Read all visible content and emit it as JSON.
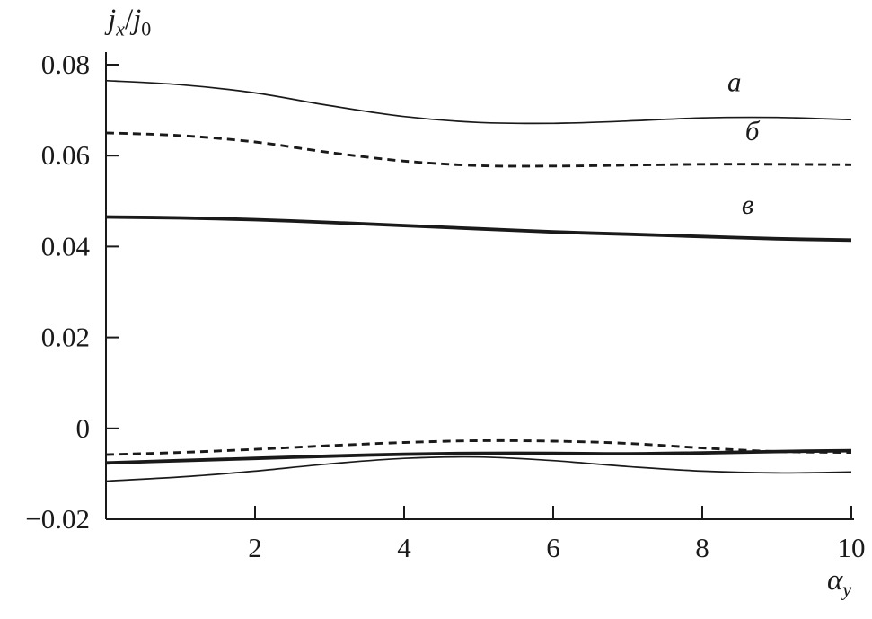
{
  "figure": {
    "y_axis_title": {
      "var1": "j",
      "sub1": "x",
      "sep": "/",
      "var2": "j",
      "sub2": "0"
    },
    "x_axis_title": {
      "var": "α",
      "sub": "y"
    }
  },
  "chart_data": {
    "type": "line",
    "title": "",
    "xlabel": "α_y",
    "ylabel": "j_x/j_0",
    "xlim": [
      0,
      10
    ],
    "ylim": [
      -0.02,
      0.08
    ],
    "grid": false,
    "legend": "inline-annotations",
    "line_color": "#1a1a1a",
    "xtick_values": [
      2,
      4,
      6,
      8,
      10
    ],
    "xtick_labels": [
      "2",
      "4",
      "6",
      "8",
      "10"
    ],
    "ytick_values": [
      -0.02,
      0,
      0.02,
      0.04,
      0.06,
      0.08
    ],
    "ytick_labels": [
      "−0.02",
      "0",
      "0.02",
      "0.04",
      "0.06",
      "0.08"
    ],
    "x": [
      0,
      1,
      2,
      3,
      4,
      5,
      6,
      7,
      8,
      9,
      10
    ],
    "series": [
      {
        "name": "a-upper",
        "line_style": "thin-solid",
        "y": [
          0.0765,
          0.0756,
          0.0738,
          0.071,
          0.0686,
          0.0673,
          0.0671,
          0.0676,
          0.0683,
          0.0684,
          0.0679
        ]
      },
      {
        "name": "b-upper",
        "line_style": "dashed",
        "y": [
          0.065,
          0.0644,
          0.063,
          0.0607,
          0.0588,
          0.0578,
          0.0577,
          0.0579,
          0.0581,
          0.0581,
          0.058
        ]
      },
      {
        "name": "v-upper",
        "line_style": "thick-solid",
        "y": [
          0.0465,
          0.0463,
          0.0459,
          0.0453,
          0.0446,
          0.0439,
          0.0432,
          0.0427,
          0.0422,
          0.0417,
          0.0414
        ]
      },
      {
        "name": "b-lower",
        "line_style": "dashed",
        "y": [
          -0.0058,
          -0.0053,
          -0.0046,
          -0.0038,
          -0.0031,
          -0.0027,
          -0.0028,
          -0.0033,
          -0.0043,
          -0.0051,
          -0.0053
        ]
      },
      {
        "name": "v-lower",
        "line_style": "thick-solid",
        "y": [
          -0.0076,
          -0.0071,
          -0.0066,
          -0.0061,
          -0.0057,
          -0.0055,
          -0.0055,
          -0.0056,
          -0.0054,
          -0.0051,
          -0.0049
        ]
      },
      {
        "name": "a-lower",
        "line_style": "thin-solid",
        "y": [
          -0.0116,
          -0.0107,
          -0.0094,
          -0.0078,
          -0.0066,
          -0.0063,
          -0.0071,
          -0.0084,
          -0.0094,
          -0.0098,
          -0.0096
        ]
      }
    ],
    "annotations": [
      {
        "label": "a",
        "x": 8.43,
        "y": 0.0742
      },
      {
        "label": "б",
        "x": 8.67,
        "y": 0.0634
      },
      {
        "label": "в",
        "x": 8.61,
        "y": 0.0472
      }
    ]
  }
}
